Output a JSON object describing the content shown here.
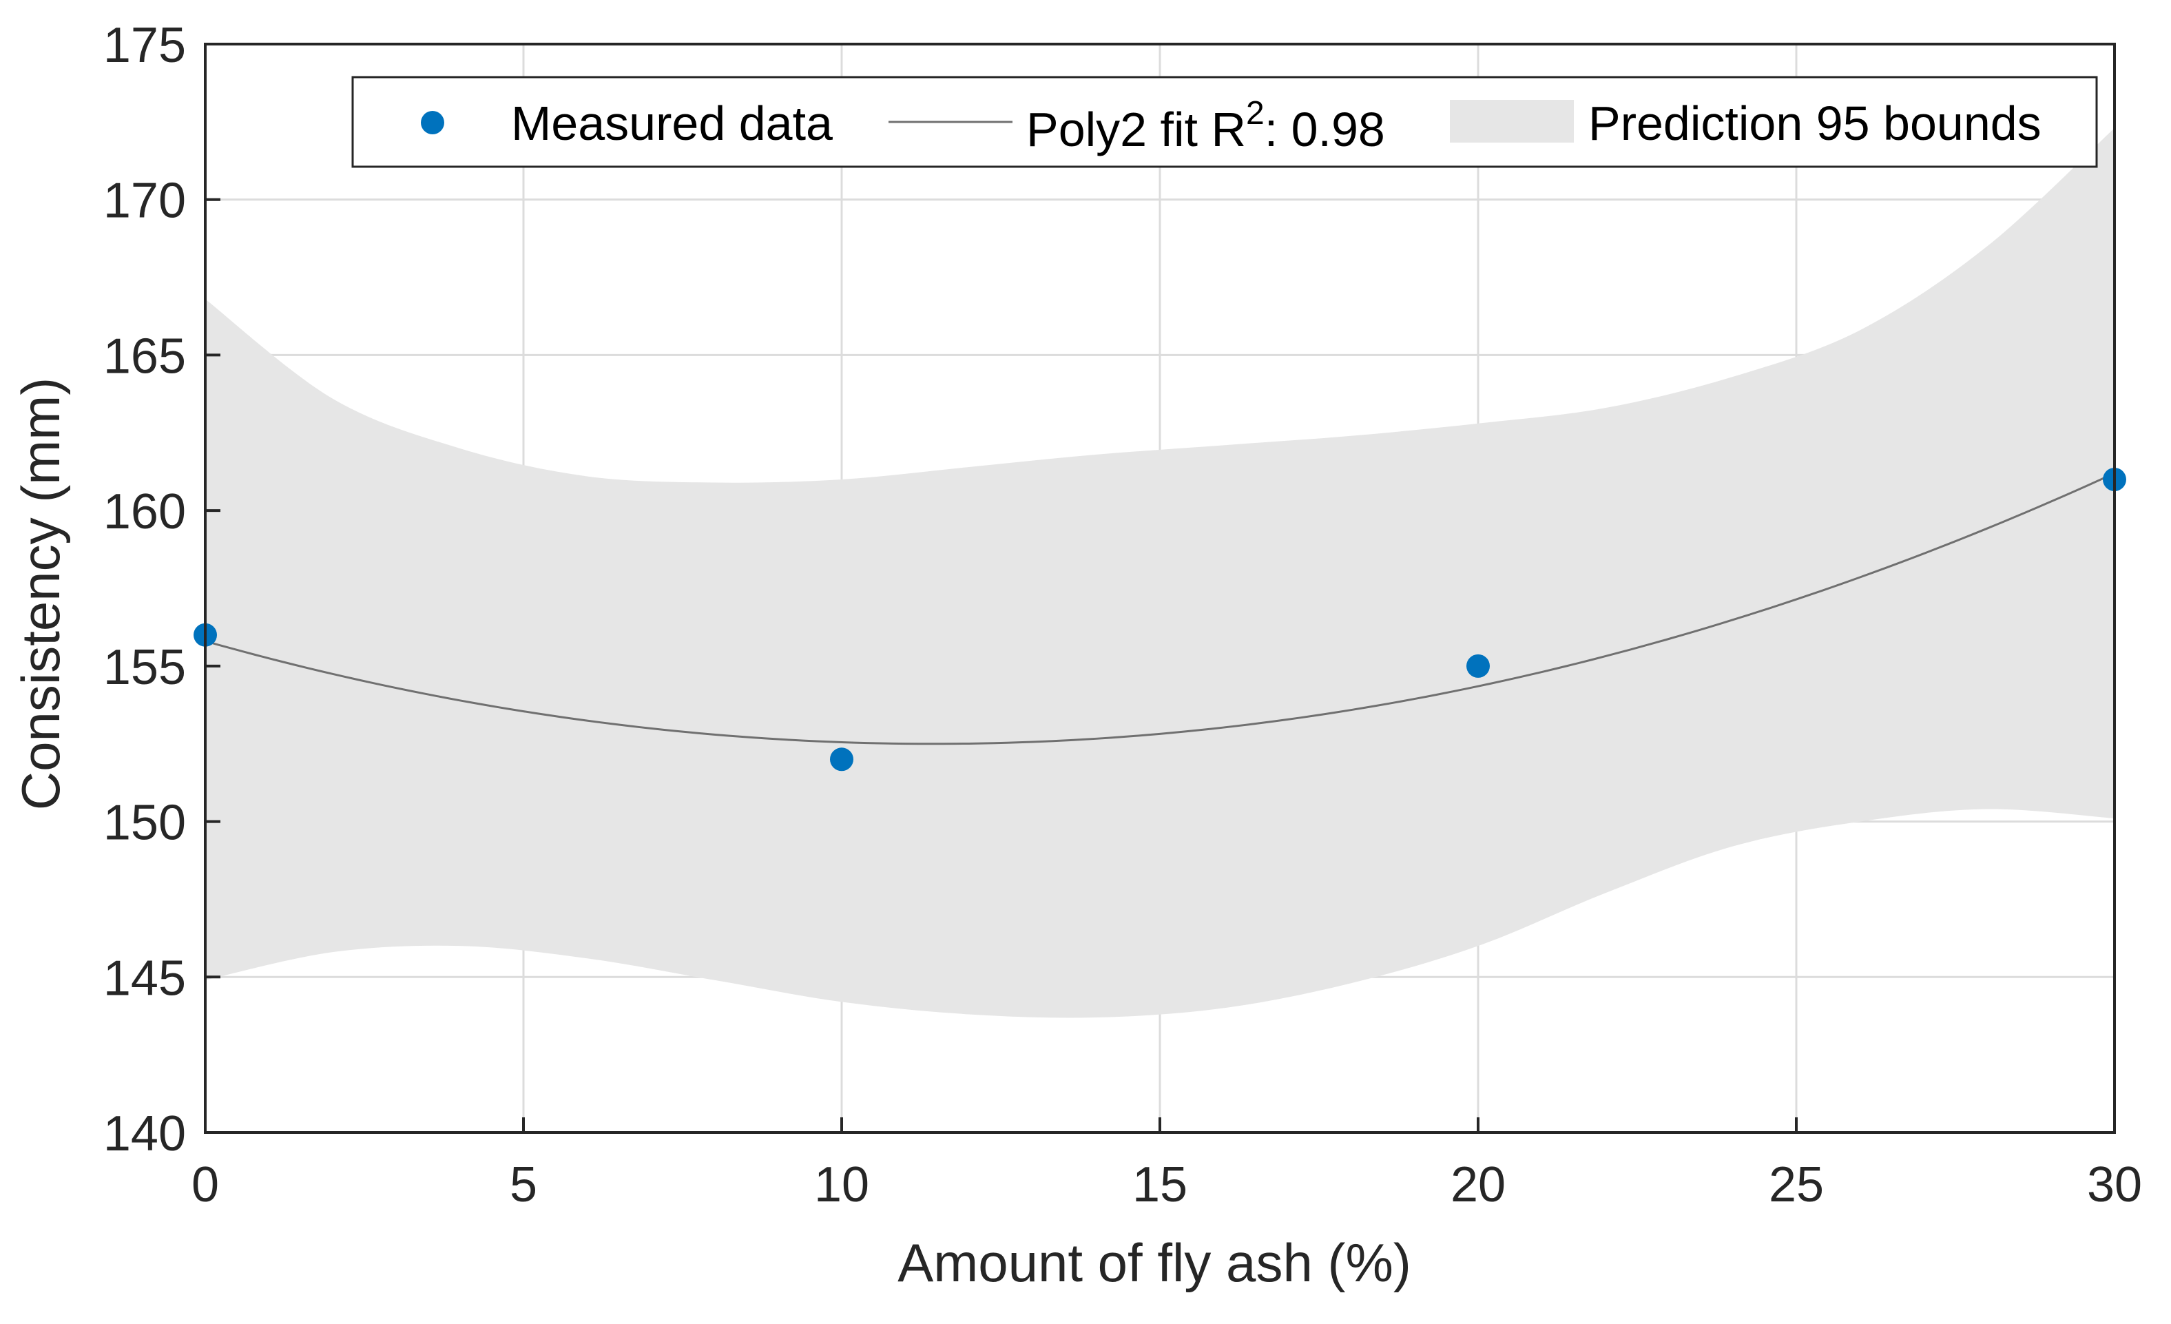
{
  "chart_data": {
    "type": "scatter",
    "title": "",
    "xlabel": "Amount of fly ash (%)",
    "ylabel": "Consistency (mm)",
    "xlim": [
      0,
      30
    ],
    "ylim": [
      140,
      175
    ],
    "xticks": [
      0,
      5,
      10,
      15,
      20,
      25,
      30
    ],
    "yticks": [
      140,
      145,
      150,
      155,
      160,
      165,
      170,
      175
    ],
    "grid": true,
    "legend_position": "top",
    "measured": {
      "name": "Measured data",
      "color": "#0072bd",
      "x": [
        0,
        10,
        20,
        30
      ],
      "y": [
        156,
        152,
        155,
        161
      ]
    },
    "fit": {
      "name_prefix": "Poly2 fit R",
      "name_sup": "2",
      "name_suffix": ": 0.98",
      "type": "poly2",
      "coefficients": [
        155.8,
        -0.5775,
        0.02525
      ],
      "color": "#707070"
    },
    "prediction_bounds": {
      "name": "Prediction 95 bounds",
      "color": "#e6e6e6",
      "x": [
        0,
        2,
        4,
        6,
        8,
        10,
        12,
        14,
        16,
        18,
        20,
        22,
        24,
        26,
        28,
        30
      ],
      "upper": [
        166.8,
        163.6,
        162.0,
        161.1,
        160.9,
        161.0,
        161.4,
        161.8,
        162.1,
        162.4,
        162.8,
        163.3,
        164.3,
        165.8,
        168.5,
        172.3
      ],
      "lower": [
        144.9,
        145.8,
        146.0,
        145.6,
        144.9,
        144.2,
        143.8,
        143.7,
        144.0,
        144.8,
        146.0,
        147.7,
        149.2,
        150.0,
        150.4,
        150.1
      ]
    }
  }
}
